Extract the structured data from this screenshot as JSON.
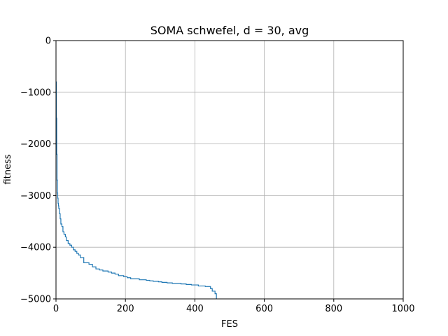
{
  "chart_data": {
    "type": "line",
    "title": "SOMA schwefel, d = 30, avg",
    "xlabel": "FES",
    "ylabel": "fitness",
    "xlim": [
      0,
      1000
    ],
    "ylim": [
      -5000,
      0
    ],
    "xticks": [
      0,
      200,
      400,
      600,
      800,
      1000
    ],
    "yticks": [
      0,
      -1000,
      -2000,
      -3000,
      -4000,
      -5000
    ],
    "xtick_labels": [
      "0",
      "200",
      "400",
      "600",
      "800",
      "1000"
    ],
    "ytick_labels": [
      "0",
      "−1000",
      "−2000",
      "−3000",
      "−4000",
      "−5000"
    ],
    "grid": true,
    "line_color": "#1f77b4",
    "series": [
      {
        "step": true,
        "x": [
          0,
          1,
          2,
          3,
          4,
          5,
          6,
          7,
          8,
          10,
          12,
          14,
          17,
          20,
          23,
          27,
          30,
          35,
          40,
          45,
          50,
          55,
          60,
          65,
          70,
          80,
          95,
          105,
          115,
          125,
          135,
          150,
          160,
          170,
          180,
          195,
          205,
          215,
          240,
          260,
          270,
          280,
          295,
          305,
          320,
          335,
          360,
          375,
          390,
          410,
          430,
          445,
          450,
          458,
          462
        ],
        "y": [
          -800,
          -1500,
          -2200,
          -2700,
          -2950,
          -3050,
          -3150,
          -3200,
          -3250,
          -3350,
          -3450,
          -3550,
          -3600,
          -3700,
          -3750,
          -3800,
          -3870,
          -3930,
          -3960,
          -4000,
          -4050,
          -4080,
          -4120,
          -4150,
          -4200,
          -4300,
          -4330,
          -4380,
          -4420,
          -4440,
          -4460,
          -4480,
          -4500,
          -4520,
          -4550,
          -4570,
          -4590,
          -4610,
          -4630,
          -4640,
          -4650,
          -4660,
          -4670,
          -4680,
          -4690,
          -4700,
          -4710,
          -4720,
          -4730,
          -4750,
          -4760,
          -4800,
          -4850,
          -4900,
          -5000
        ]
      }
    ]
  }
}
